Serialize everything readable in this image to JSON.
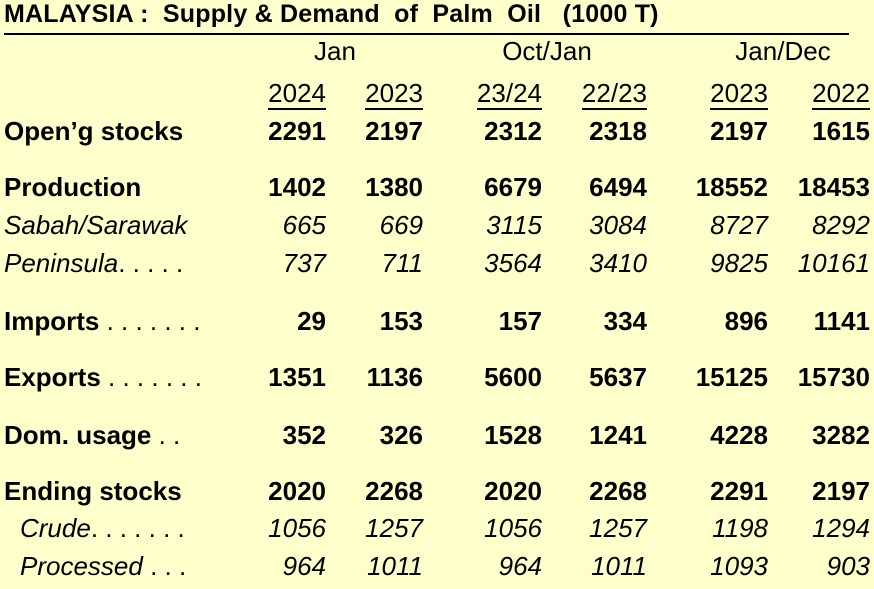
{
  "title": "MALAYSIA :  Supply & Demand  of  Palm  Oil   (1000 T)",
  "groups": [
    "Jan",
    "Oct/Jan",
    "Jan/Dec"
  ],
  "years": [
    "2024",
    "2023",
    "23/24",
    "22/23",
    "2023",
    "2022"
  ],
  "rows": [
    {
      "label": "Open’g stocks",
      "dots": "",
      "style": "bold",
      "values": [
        "2291",
        "2197",
        "2312",
        "2318",
        "2197",
        "1615"
      ]
    },
    {
      "label": "Production",
      "dots": "",
      "style": "bold",
      "values": [
        "1402",
        "1380",
        "6679",
        "6494",
        "18552",
        "18453"
      ]
    },
    {
      "label": "Sabah/Sarawak",
      "dots": "",
      "style": "ital",
      "values": [
        "665",
        "669",
        "3115",
        "3084",
        "8727",
        "8292"
      ]
    },
    {
      "label": "Peninsula",
      "dots": ". . . . .",
      "style": "ital",
      "values": [
        "737",
        "711",
        "3564",
        "3410",
        "9825",
        "10161"
      ]
    },
    {
      "label": "Imports",
      "dots": " . . . . . . .",
      "style": "bold",
      "values": [
        "29",
        "153",
        "157",
        "334",
        "896",
        "1141"
      ]
    },
    {
      "label": "Exports",
      "dots": " . . . . . . .",
      "style": "bold",
      "values": [
        "1351",
        "1136",
        "5600",
        "5637",
        "15125",
        "15730"
      ]
    },
    {
      "label": "Dom. usage",
      "dots": " . .",
      "style": "bold",
      "values": [
        "352",
        "326",
        "1528",
        "1241",
        "4228",
        "3282"
      ]
    },
    {
      "label": "Ending stocks",
      "dots": "",
      "style": "bold",
      "values": [
        "2020",
        "2268",
        "2020",
        "2268",
        "2291",
        "2197"
      ]
    },
    {
      "label": "Crude",
      "dots": ". . . . . . .",
      "style": "ital",
      "values": [
        "1056",
        "1257",
        "1056",
        "1257",
        "1198",
        "1294"
      ]
    },
    {
      "label": "Processed",
      "dots": " . . .",
      "style": "ital",
      "values": [
        "964",
        "1011",
        "964",
        "1011",
        "1093",
        "903"
      ]
    }
  ]
}
